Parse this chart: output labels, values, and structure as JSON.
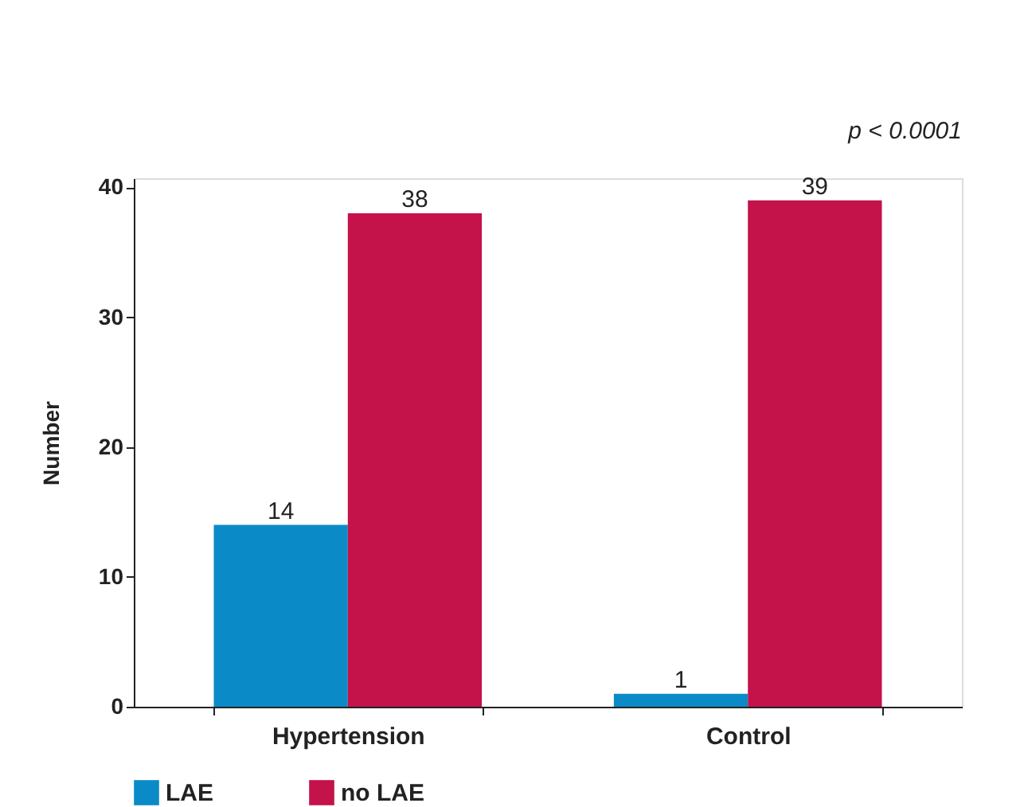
{
  "chart_data": {
    "type": "bar",
    "ylabel": "Number",
    "categories": [
      "Hypertension",
      "Control"
    ],
    "series": [
      {
        "name": "LAE",
        "color": "#0a8bc7",
        "values": [
          14,
          1
        ]
      },
      {
        "name": "no LAE",
        "color": "#c4124a",
        "values": [
          38,
          39
        ]
      }
    ],
    "ylim": [
      0,
      40.7
    ],
    "yticks": [
      0,
      10,
      20,
      30,
      40
    ],
    "grid": false,
    "legend": "bottom",
    "data_labels": true,
    "annotations": [
      "p < 0.0001"
    ]
  }
}
